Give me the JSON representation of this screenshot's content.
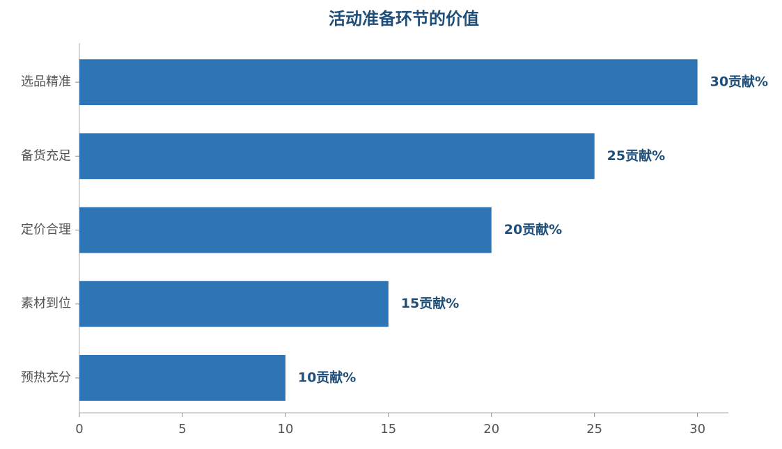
{
  "chart_data": {
    "type": "bar",
    "orientation": "horizontal",
    "title": "活动准备环节的价值",
    "categories": [
      "选品精准",
      "备货充足",
      "定价合理",
      "素材到位",
      "预热充分"
    ],
    "values": [
      30,
      25,
      20,
      15,
      10
    ],
    "value_labels": [
      "30贡献%",
      "25贡献%",
      "20贡献%",
      "15贡献%",
      "10贡献%"
    ],
    "color": "#2e75b6",
    "xlim": [
      0,
      31.5
    ],
    "xticks": [
      0,
      5,
      10,
      15,
      20,
      25,
      30
    ],
    "grid": false
  }
}
